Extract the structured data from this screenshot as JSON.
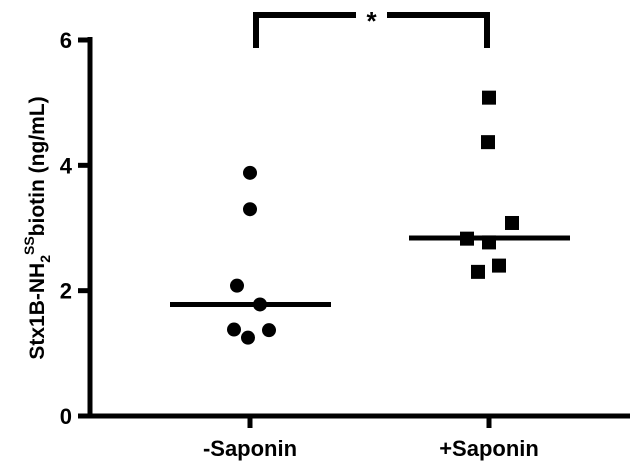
{
  "chart_data": {
    "type": "scatter",
    "title": "",
    "ylabel": {
      "main": "Stx1B-NH",
      "subscript": "2",
      "superscript": "SS",
      "rest": "biotin (ng/mL)"
    },
    "xlabel": "",
    "categories": [
      "-Saponin",
      "+Saponin"
    ],
    "ylim": [
      0,
      6
    ],
    "yticks": [
      0,
      2,
      4,
      6
    ],
    "grid": false,
    "series": [
      {
        "category": "-Saponin",
        "marker": "circle",
        "values": [
          3.88,
          3.3,
          2.08,
          1.78,
          1.38,
          1.37,
          1.25
        ],
        "median": 1.78
      },
      {
        "category": "+Saponin",
        "marker": "square",
        "values": [
          5.08,
          4.37,
          3.08,
          2.83,
          2.77,
          2.4,
          2.3
        ],
        "median": 2.84
      }
    ],
    "significance": {
      "label": "*",
      "between": [
        "-Saponin",
        "+Saponin"
      ]
    },
    "color": "#000000"
  }
}
